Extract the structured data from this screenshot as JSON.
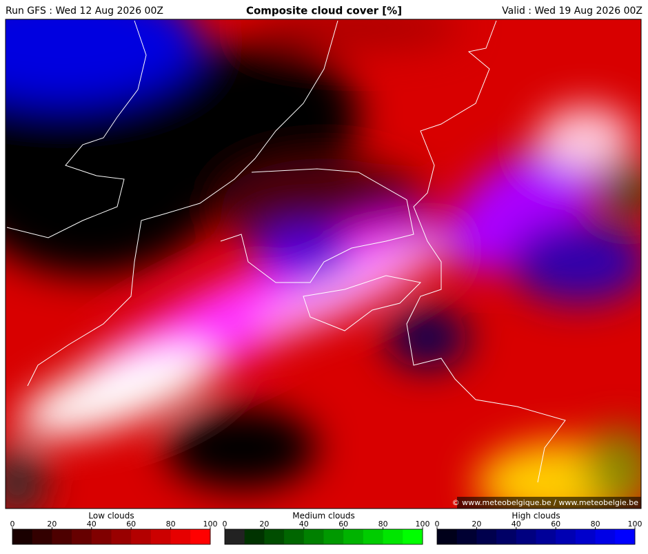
{
  "header": {
    "run": "Run GFS : Wed 12 Aug 2026 00Z",
    "title": "Composite cloud cover [%]",
    "valid": "Valid : Wed 19 Aug 2026 00Z"
  },
  "map": {
    "credit": "© www.meteobelgique.be / www.meteobelgie.be"
  },
  "legends": [
    {
      "title": "Low clouds",
      "range": [
        0,
        100
      ],
      "ticks": [
        0,
        20,
        40,
        60,
        80,
        100
      ],
      "colors": [
        "#1a0000",
        "#330000",
        "#4d0000",
        "#660000",
        "#800000",
        "#990000",
        "#b30000",
        "#cc0000",
        "#e60000",
        "#ff0000"
      ]
    },
    {
      "title": "Medium clouds",
      "range": [
        0,
        100
      ],
      "ticks": [
        0,
        20,
        40,
        60,
        80,
        100
      ],
      "colors": [
        "#222222",
        "#003300",
        "#004d00",
        "#006600",
        "#008000",
        "#009900",
        "#00b300",
        "#00cc00",
        "#00e600",
        "#00ff00"
      ]
    },
    {
      "title": "High clouds",
      "range": [
        0,
        100
      ],
      "ticks": [
        0,
        20,
        40,
        60,
        80,
        100
      ],
      "colors": [
        "#00001a",
        "#000033",
        "#00004d",
        "#000066",
        "#000080",
        "#000099",
        "#0000b3",
        "#0000cc",
        "#0000e6",
        "#0000ff"
      ]
    }
  ]
}
